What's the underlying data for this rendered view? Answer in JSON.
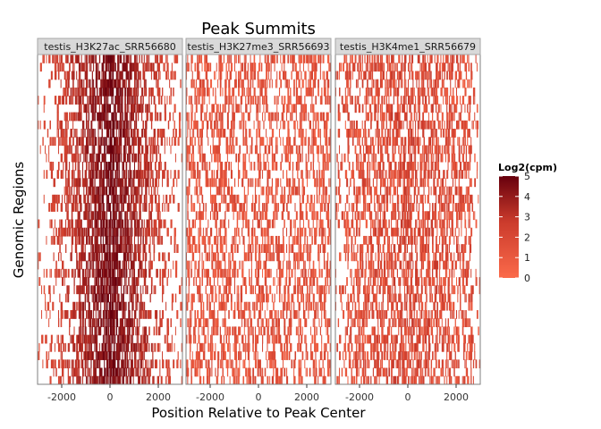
{
  "chart_data": {
    "type": "heatmap",
    "title": "Peak Summits",
    "xlabel": "Position Relative to Peak Center",
    "ylabel": "Genomic Regions",
    "xlim": [
      -3000,
      3000
    ],
    "x_ticks": [
      -2000,
      0,
      2000
    ],
    "x_tick_labels": [
      "-2000",
      "0",
      "2000"
    ],
    "grid": false,
    "panels": [
      {
        "label": "testis_H3K27ac_SRR56680",
        "profile": "center"
      },
      {
        "label": "testis_H3K27me3_SRR56693",
        "profile": "sparse"
      },
      {
        "label": "testis_H3K4me1_SRR56679",
        "profile": "broad"
      }
    ],
    "legend": {
      "title": "Log2(cpm)",
      "placement": "right",
      "range": [
        0,
        5
      ],
      "ticks": [
        0,
        1,
        2,
        3,
        4,
        5
      ],
      "tick_labels": [
        "0",
        "1",
        "2",
        "3",
        "4",
        "5"
      ],
      "color_low": "#fb6a4a",
      "color_mid": "#cb3b2c",
      "color_high": "#67000d"
    },
    "colors": {
      "strip_fill": "#d9d9d9",
      "strip_border": "#a6a6a6",
      "panel_border": "#7f7f7f"
    }
  }
}
